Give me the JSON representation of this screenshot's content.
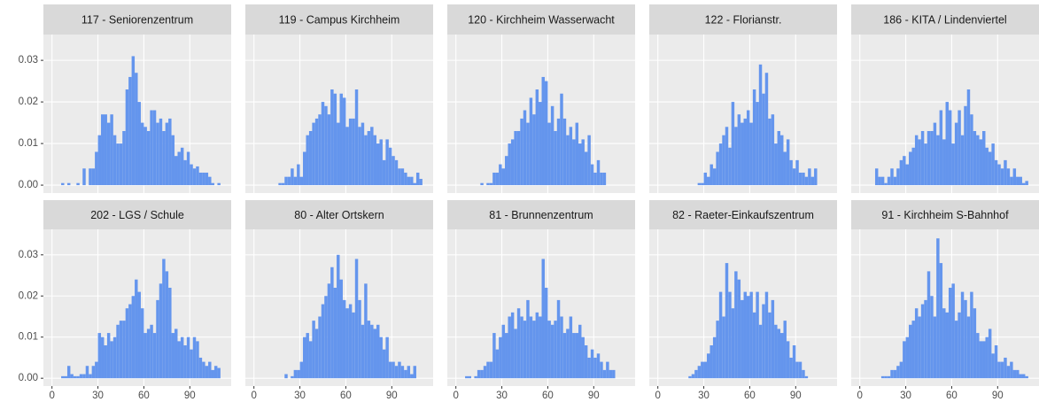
{
  "chart_data": {
    "type": "histogram",
    "color": "#6495ed",
    "grid": true,
    "xlim": [
      -5.6,
      117
    ],
    "ylim": [
      -0.0019,
      0.0362
    ],
    "xticks": [
      0,
      30,
      60,
      90
    ],
    "yticks": [
      {
        "value": 0,
        "label": "0.00"
      },
      {
        "value": 0.01,
        "label": "0.01"
      },
      {
        "value": 0.02,
        "label": "0.02"
      },
      {
        "value": 0.03,
        "label": "0.03"
      }
    ],
    "bins": [
      6,
      8,
      10,
      12,
      14,
      16,
      18,
      20,
      22,
      24,
      26,
      28,
      30,
      32,
      34,
      36,
      38,
      40,
      42,
      44,
      46,
      48,
      50,
      52,
      54,
      56,
      58,
      60,
      62,
      64,
      66,
      68,
      70,
      72,
      74,
      76,
      78,
      80,
      82,
      84,
      86,
      88,
      90,
      92,
      94,
      96,
      98,
      100,
      102,
      104,
      106,
      108,
      110
    ],
    "facets": [
      {
        "title": "117 - Seniorenzentrum",
        "values": [
          0.0005,
          0,
          0.0005,
          0,
          0,
          0.0005,
          0,
          0.004,
          0,
          0.004,
          0.004,
          0.008,
          0.012,
          0.017,
          0.017,
          0.015,
          0.017,
          0.012,
          0.01,
          0.01,
          0.013,
          0.023,
          0.026,
          0.031,
          0.027,
          0.02,
          0.015,
          0.014,
          0.013,
          0.018,
          0.018,
          0.015,
          0.016,
          0.013,
          0.015,
          0.016,
          0.012,
          0.007,
          0.008,
          0.009,
          0.006,
          0.008,
          0.005,
          0.004,
          0.0045,
          0.003,
          0.003,
          0.003,
          0.002,
          0.0005,
          0,
          0.0005
        ]
      },
      {
        "title": "119 - Campus Kirchheim",
        "values": [
          0,
          0,
          0,
          0,
          0,
          0.0005,
          0.0005,
          0.002,
          0.002,
          0.004,
          0.002,
          0.005,
          0.002,
          0.008,
          0.012,
          0.013,
          0.015,
          0.016,
          0.017,
          0.02,
          0.019,
          0.017,
          0.023,
          0.022,
          0.015,
          0.022,
          0.021,
          0.014,
          0.016,
          0.016,
          0.023,
          0.014,
          0.015,
          0.012,
          0.013,
          0.014,
          0.012,
          0.01,
          0.011,
          0.006,
          0.011,
          0.009,
          0.007,
          0.006,
          0.004,
          0.004,
          0.003,
          0.002,
          0.002,
          0.0005,
          0.003,
          0.0015
        ]
      },
      {
        "title": "120 - Kirchheim Wasserwacht",
        "values": [
          0,
          0,
          0,
          0,
          0,
          0.0005,
          0,
          0.0005,
          0.0005,
          0.003,
          0.003,
          0.005,
          0.004,
          0.007,
          0.01,
          0.011,
          0.013,
          0.013,
          0.016,
          0.018,
          0.015,
          0.021,
          0.017,
          0.023,
          0.02,
          0.026,
          0.025,
          0.015,
          0.019,
          0.013,
          0.016,
          0.022,
          0.016,
          0.012,
          0.014,
          0.011,
          0.015,
          0.01,
          0.011,
          0.008,
          0.012,
          0.005,
          0.003,
          0.006,
          0.003,
          0.003,
          0,
          0,
          0,
          0,
          0,
          0
        ]
      },
      {
        "title": "122 - Florianstr.",
        "values": [
          0,
          0,
          0,
          0,
          0,
          0,
          0,
          0,
          0,
          0,
          0.0005,
          0.0005,
          0.003,
          0.002,
          0.005,
          0.004,
          0.008,
          0.01,
          0.012,
          0.014,
          0.009,
          0.02,
          0.014,
          0.017,
          0.015,
          0.016,
          0.018,
          0.015,
          0.023,
          0.02,
          0.029,
          0.022,
          0.027,
          0.016,
          0.017,
          0.01,
          0.013,
          0.012,
          0.008,
          0.011,
          0.006,
          0.004,
          0.006,
          0.003,
          0.003,
          0.002,
          0.004,
          0.002,
          0.004,
          0,
          0,
          0
        ]
      },
      {
        "title": "186 - KITA / Lindenviertel",
        "values": [
          0,
          0,
          0.004,
          0.002,
          0.002,
          0.0005,
          0.002,
          0.004,
          0.002,
          0.004,
          0.006,
          0.007,
          0.005,
          0.008,
          0.009,
          0.012,
          0.011,
          0.013,
          0.01,
          0.013,
          0.013,
          0.015,
          0.012,
          0.018,
          0.011,
          0.02,
          0.018,
          0.01,
          0.015,
          0.018,
          0.012,
          0.019,
          0.023,
          0.017,
          0.013,
          0.012,
          0.011,
          0.013,
          0.009,
          0.008,
          0.01,
          0.006,
          0.005,
          0.004,
          0.006,
          0.004,
          0.002,
          0.004,
          0.002,
          0.002,
          0.0005,
          0.001
        ]
      },
      {
        "title": "202 - LGS / Schule",
        "values": [
          0.0005,
          0.0005,
          0.003,
          0.001,
          0.0005,
          0.0005,
          0.001,
          0.001,
          0.003,
          0.001,
          0.003,
          0.004,
          0.011,
          0.01,
          0.008,
          0.011,
          0.009,
          0.01,
          0.013,
          0.014,
          0.014,
          0.017,
          0.018,
          0.02,
          0.024,
          0.021,
          0.017,
          0.011,
          0.012,
          0.013,
          0.011,
          0.019,
          0.023,
          0.029,
          0.026,
          0.022,
          0.011,
          0.012,
          0.009,
          0.01,
          0.008,
          0.01,
          0.007,
          0.01,
          0.009,
          0.005,
          0.004,
          0.003,
          0.004,
          0.002,
          0.003,
          0.0025
        ]
      },
      {
        "title": "80 - Alter Ortskern",
        "values": [
          0,
          0,
          0,
          0,
          0,
          0,
          0,
          0.001,
          0,
          0.0005,
          0.002,
          0.002,
          0.004,
          0.01,
          0.011,
          0.009,
          0.014,
          0.012,
          0.015,
          0.018,
          0.02,
          0.023,
          0.027,
          0.022,
          0.03,
          0.024,
          0.019,
          0.017,
          0.018,
          0.016,
          0.029,
          0.019,
          0.013,
          0.023,
          0.014,
          0.013,
          0.012,
          0.013,
          0.01,
          0.007,
          0.01,
          0.004,
          0.004,
          0.003,
          0.004,
          0.003,
          0.002,
          0.003,
          0.001,
          0.003,
          0,
          0
        ]
      },
      {
        "title": "81 - Brunnenzentrum",
        "values": [
          0.0005,
          0.0005,
          0,
          0.0005,
          0.002,
          0.002,
          0.003,
          0.004,
          0.004,
          0.011,
          0.007,
          0.01,
          0.013,
          0.011,
          0.015,
          0.016,
          0.012,
          0.017,
          0.015,
          0.014,
          0.019,
          0.015,
          0.014,
          0.016,
          0.015,
          0.029,
          0.022,
          0.014,
          0.013,
          0.014,
          0.019,
          0.015,
          0.011,
          0.012,
          0.015,
          0.011,
          0.011,
          0.013,
          0.01,
          0.008,
          0.005,
          0.007,
          0.005,
          0.006,
          0.004,
          0.002,
          0.004,
          0.002,
          0.002,
          0,
          0,
          0
        ]
      },
      {
        "title": "82 - Raeter-Einkaufszentrum",
        "values": [
          0,
          0,
          0,
          0,
          0,
          0,
          0,
          0.0005,
          0.001,
          0.002,
          0.003,
          0.004,
          0.004,
          0.006,
          0.008,
          0.01,
          0.014,
          0.021,
          0.015,
          0.028,
          0.021,
          0.017,
          0.026,
          0.024,
          0.019,
          0.021,
          0.02,
          0.021,
          0.016,
          0.021,
          0.013,
          0.018,
          0.021,
          0.016,
          0.019,
          0.013,
          0.012,
          0.011,
          0.014,
          0.009,
          0.005,
          0.008,
          0.004,
          0.004,
          0.002,
          0.0005,
          0,
          0,
          0,
          0,
          0,
          0
        ]
      },
      {
        "title": "91 - Kirchheim S-Bahnhof",
        "values": [
          0,
          0,
          0,
          0,
          0.0005,
          0.0005,
          0.0005,
          0.002,
          0.002,
          0.003,
          0.004,
          0.009,
          0.01,
          0.013,
          0.014,
          0.017,
          0.015,
          0.018,
          0.019,
          0.026,
          0.02,
          0.015,
          0.034,
          0.028,
          0.017,
          0.016,
          0.022,
          0.023,
          0.014,
          0.016,
          0.021,
          0.019,
          0.015,
          0.021,
          0.017,
          0.011,
          0.009,
          0.009,
          0.01,
          0.012,
          0.006,
          0.008,
          0.004,
          0.004,
          0.005,
          0.003,
          0.004,
          0.002,
          0.002,
          0.001,
          0.001,
          0.0005
        ]
      }
    ]
  }
}
